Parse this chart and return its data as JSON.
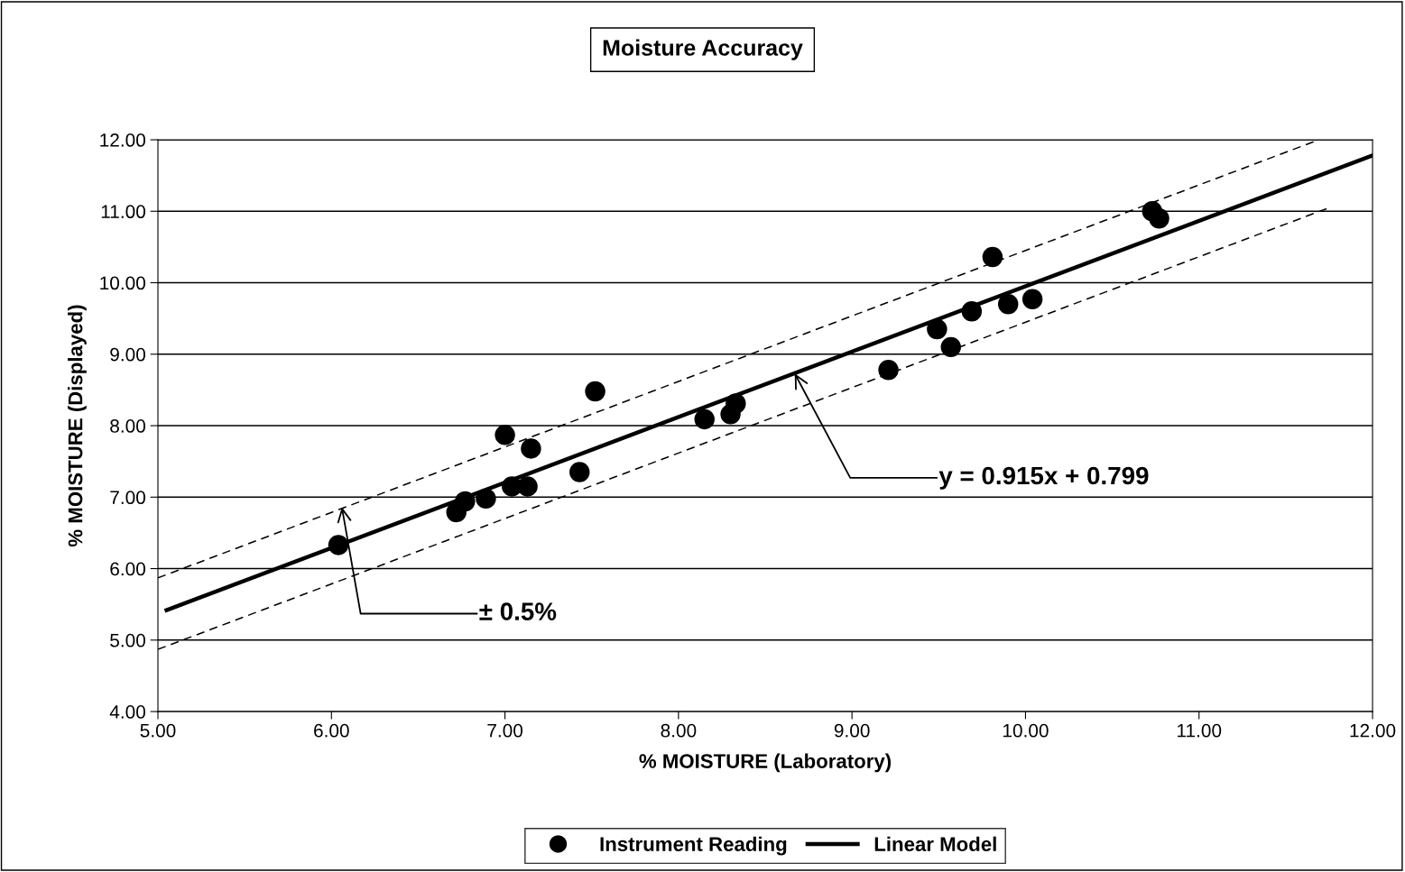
{
  "chart_data": {
    "type": "scatter",
    "title": "Moisture Accuracy",
    "xlabel": "% MOISTURE (Laboratory)",
    "ylabel": "% MOISTURE (Displayed)",
    "xlim": [
      5,
      12
    ],
    "ylim": [
      4,
      12
    ],
    "xticks": [
      {
        "value": 5,
        "label": "5.00"
      },
      {
        "value": 6,
        "label": "6.00"
      },
      {
        "value": 7,
        "label": "7.00"
      },
      {
        "value": 8,
        "label": "8.00"
      },
      {
        "value": 9,
        "label": "9.00"
      },
      {
        "value": 10,
        "label": "10.00"
      },
      {
        "value": 11,
        "label": "11.00"
      },
      {
        "value": 12,
        "label": "12.00"
      }
    ],
    "yticks": [
      {
        "value": 4,
        "label": "4.00"
      },
      {
        "value": 5,
        "label": "5.00"
      },
      {
        "value": 6,
        "label": "6.00"
      },
      {
        "value": 7,
        "label": "7.00"
      },
      {
        "value": 8,
        "label": "8.00"
      },
      {
        "value": 9,
        "label": "9.00"
      },
      {
        "value": 10,
        "label": "10.00"
      },
      {
        "value": 11,
        "label": "11.00"
      },
      {
        "value": 12,
        "label": "12.00"
      }
    ],
    "grid": "y",
    "legend": "bottom",
    "series": [
      {
        "name": "Instrument Reading",
        "type": "scatter",
        "color": "#000000",
        "marker": "circle",
        "x": [
          6.04,
          6.72,
          6.77,
          6.89,
          7.0,
          7.04,
          7.13,
          7.15,
          7.43,
          7.52,
          8.15,
          8.3,
          8.33,
          9.21,
          9.49,
          9.57,
          9.69,
          9.81,
          9.9,
          10.04,
          10.73,
          10.77
        ],
        "values": [
          6.33,
          6.79,
          6.94,
          6.98,
          7.87,
          7.15,
          7.15,
          7.68,
          7.35,
          8.48,
          8.09,
          8.16,
          8.31,
          8.78,
          9.35,
          9.1,
          9.6,
          10.36,
          9.7,
          9.77,
          11.0,
          10.9
        ]
      },
      {
        "name": "Linear Model",
        "type": "line",
        "color": "#000000",
        "line_style": "solid",
        "x": [
          5.05,
          12
        ],
        "values": [
          5.42,
          11.78
        ]
      },
      {
        "type": "line",
        "color": "#000000",
        "line_style": "dashed",
        "x": [
          5,
          11.69
        ],
        "values": [
          5.87,
          12.0
        ]
      },
      {
        "type": "line",
        "color": "#000000",
        "line_style": "dashed",
        "x": [
          5,
          11.75
        ],
        "values": [
          4.87,
          11.05
        ]
      }
    ],
    "annotations": [
      {
        "text": "y = 0.915x + 0.799",
        "x": 8.67,
        "y": 8.73
      },
      {
        "text": "± 0.5%",
        "x": 6.06,
        "y": 6.86
      }
    ]
  }
}
